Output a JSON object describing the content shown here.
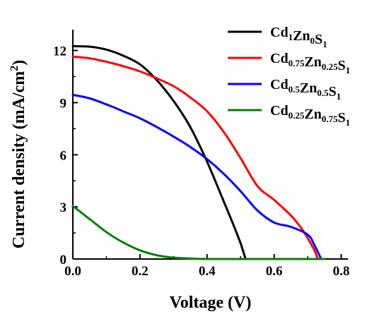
{
  "chart_data": {
    "type": "line",
    "xlabel": "Voltage (V)",
    "ylabel": "Current density (mA/cm",
    "ylabel_sup": "2",
    "ylabel_close": ")",
    "xlim": [
      0,
      0.82
    ],
    "ylim": [
      0,
      13.2
    ],
    "x_ticks": [
      0.0,
      0.2,
      0.4,
      0.6,
      0.8
    ],
    "x_tick_labels": [
      "0.0",
      "0.2",
      "0.4",
      "0.6",
      "0.8"
    ],
    "y_ticks": [
      0,
      3,
      6,
      9,
      12
    ],
    "y_tick_labels": [
      "0",
      "3",
      "6",
      "9",
      "12"
    ],
    "grid": false,
    "legend_position": "top-right",
    "series": [
      {
        "name": "Cd1Zn0S1",
        "legend_parts": [
          {
            "t": "Cd",
            "sub": false
          },
          {
            "t": "1",
            "sub": true
          },
          {
            "t": "Zn",
            "sub": false
          },
          {
            "t": "0",
            "sub": true
          },
          {
            "t": "S",
            "sub": false
          },
          {
            "t": "1",
            "sub": true
          }
        ],
        "color": "#000000",
        "x": [
          0.0,
          0.05,
          0.1,
          0.15,
          0.2,
          0.25,
          0.3,
          0.35,
          0.4,
          0.45,
          0.48,
          0.5,
          0.51,
          0.515
        ],
        "y": [
          12.25,
          12.22,
          12.05,
          11.7,
          11.2,
          10.3,
          9.1,
          7.6,
          5.6,
          3.3,
          1.9,
          0.9,
          0.3,
          0.0
        ]
      },
      {
        "name": "Cd0.75Zn0.25S1",
        "legend_parts": [
          {
            "t": "Cd",
            "sub": false
          },
          {
            "t": "0.75",
            "sub": true
          },
          {
            "t": "Zn",
            "sub": false
          },
          {
            "t": "0.25",
            "sub": true
          },
          {
            "t": "S",
            "sub": false
          },
          {
            "t": "1",
            "sub": true
          }
        ],
        "color": "#ff0000",
        "x": [
          0.0,
          0.05,
          0.1,
          0.15,
          0.2,
          0.25,
          0.3,
          0.35,
          0.4,
          0.45,
          0.5,
          0.55,
          0.6,
          0.65,
          0.68,
          0.7,
          0.72,
          0.73
        ],
        "y": [
          11.65,
          11.55,
          11.35,
          11.1,
          10.8,
          10.4,
          9.95,
          9.3,
          8.5,
          7.3,
          5.8,
          4.2,
          3.4,
          2.5,
          1.8,
          1.2,
          0.5,
          0.0
        ]
      },
      {
        "name": "Cd0.5Zn0.5S1",
        "legend_parts": [
          {
            "t": "Cd",
            "sub": false
          },
          {
            "t": "0.5",
            "sub": true
          },
          {
            "t": "Zn",
            "sub": false
          },
          {
            "t": "0.5",
            "sub": true
          },
          {
            "t": "S",
            "sub": false
          },
          {
            "t": "1",
            "sub": true
          }
        ],
        "color": "#0000ff",
        "x": [
          0.0,
          0.05,
          0.1,
          0.15,
          0.2,
          0.25,
          0.3,
          0.35,
          0.4,
          0.45,
          0.5,
          0.55,
          0.6,
          0.65,
          0.7,
          0.72,
          0.74
        ],
        "y": [
          9.45,
          9.25,
          8.9,
          8.5,
          8.1,
          7.6,
          7.05,
          6.45,
          5.75,
          4.9,
          3.9,
          2.8,
          2.1,
          1.85,
          1.4,
          0.8,
          0.0
        ]
      },
      {
        "name": "Cd0.25Zn0.75S1",
        "legend_parts": [
          {
            "t": "Cd",
            "sub": false
          },
          {
            "t": "0.25",
            "sub": true
          },
          {
            "t": "Zn",
            "sub": false
          },
          {
            "t": "0.75",
            "sub": true
          },
          {
            "t": "S",
            "sub": false
          },
          {
            "t": "1",
            "sub": true
          }
        ],
        "color": "#008000",
        "x": [
          0.0,
          0.05,
          0.1,
          0.15,
          0.2,
          0.25,
          0.3,
          0.35,
          0.4,
          0.5,
          0.6,
          0.7,
          0.75
        ],
        "y": [
          3.05,
          2.3,
          1.55,
          0.95,
          0.5,
          0.22,
          0.08,
          0.03,
          0.0,
          0.0,
          0.0,
          0.0,
          0.0
        ]
      }
    ]
  }
}
